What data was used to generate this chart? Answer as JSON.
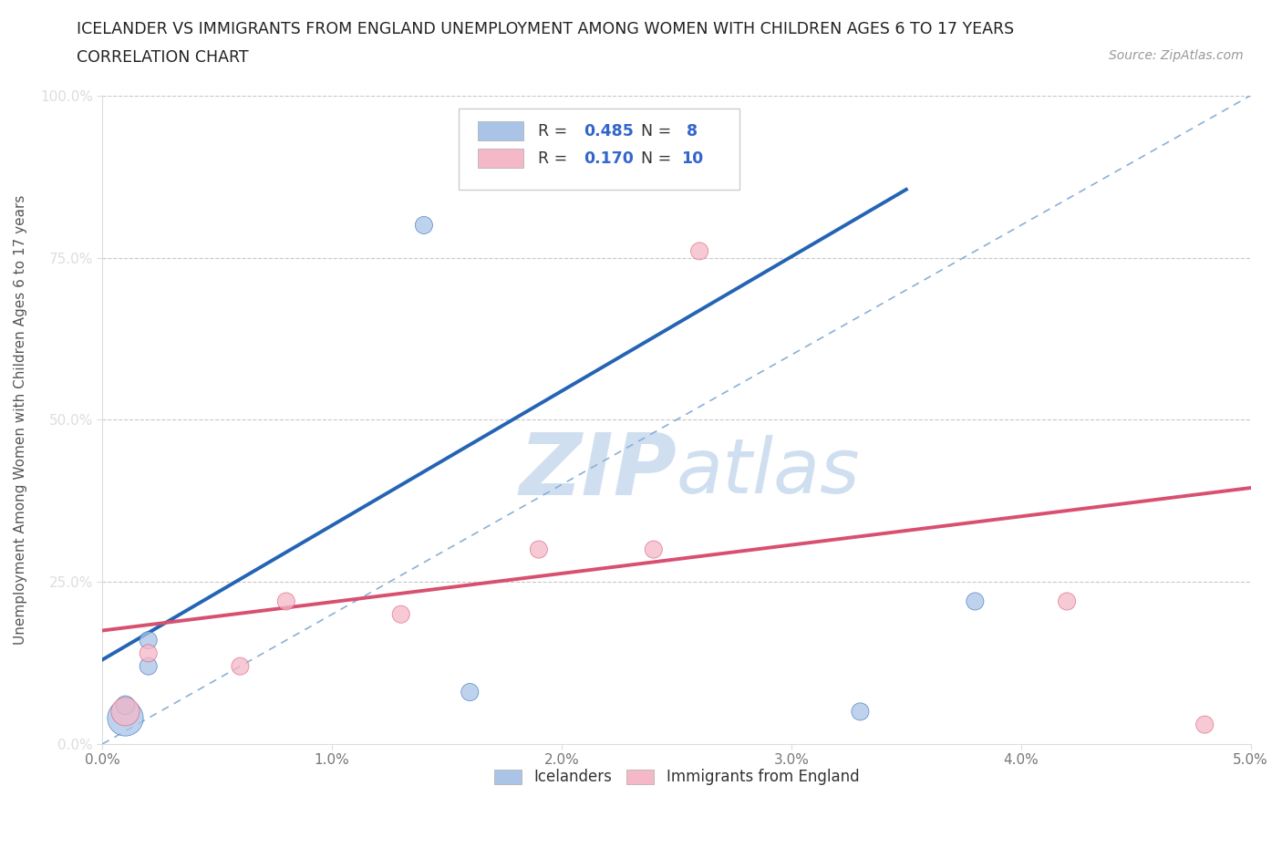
{
  "title_line1": "ICELANDER VS IMMIGRANTS FROM ENGLAND UNEMPLOYMENT AMONG WOMEN WITH CHILDREN AGES 6 TO 17 YEARS",
  "title_line2": "CORRELATION CHART",
  "source_text": "Source: ZipAtlas.com",
  "ylabel": "Unemployment Among Women with Children Ages 6 to 17 years",
  "xlim": [
    0.0,
    0.05
  ],
  "ylim": [
    0.0,
    1.0
  ],
  "xticks": [
    0.0,
    0.01,
    0.02,
    0.03,
    0.04,
    0.05
  ],
  "xtick_labels": [
    "0.0%",
    "1.0%",
    "2.0%",
    "3.0%",
    "4.0%",
    "5.0%"
  ],
  "yticks": [
    0.0,
    0.25,
    0.5,
    0.75,
    1.0
  ],
  "ytick_labels": [
    "0.0%",
    "25.0%",
    "50.0%",
    "75.0%",
    "100.0%"
  ],
  "icelanders_x": [
    0.001,
    0.001,
    0.002,
    0.002,
    0.014,
    0.016,
    0.033,
    0.038
  ],
  "icelanders_y": [
    0.04,
    0.06,
    0.12,
    0.16,
    0.8,
    0.08,
    0.05,
    0.22
  ],
  "england_x": [
    0.001,
    0.002,
    0.006,
    0.008,
    0.013,
    0.019,
    0.024,
    0.026,
    0.042,
    0.048
  ],
  "england_y": [
    0.05,
    0.14,
    0.12,
    0.22,
    0.2,
    0.3,
    0.3,
    0.76,
    0.22,
    0.03
  ],
  "blue_line_x0": 0.0,
  "blue_line_y0": 0.13,
  "blue_line_x1": 0.035,
  "blue_line_y1": 0.855,
  "pink_line_x0": 0.0,
  "pink_line_y0": 0.175,
  "pink_line_x1": 0.05,
  "pink_line_y1": 0.395,
  "icelanders_R": 0.485,
  "icelanders_N": 8,
  "england_R": 0.17,
  "england_N": 10,
  "blue_fill_color": "#aac4e8",
  "pink_fill_color": "#f4b8c8",
  "blue_line_color": "#2464b4",
  "pink_line_color": "#d85070",
  "ref_line_color": "#8ab0d8",
  "watermark_color": "#d0dff0",
  "bg_color": "#ffffff",
  "grid_color": "#c8c8c8",
  "title_color": "#222222",
  "ytick_label_color": "#4488cc",
  "marker_size_large": 800,
  "marker_size_medium": 250,
  "marker_size_small": 180
}
